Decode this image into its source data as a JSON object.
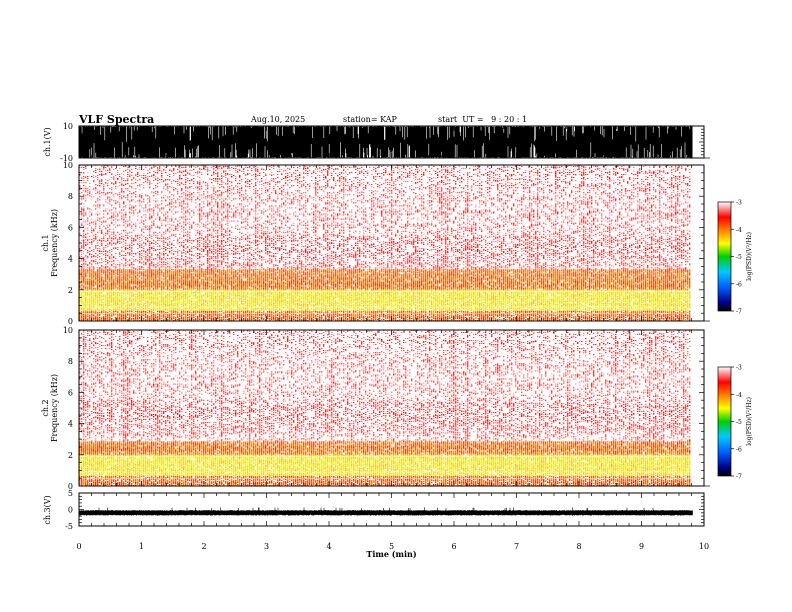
{
  "header": {
    "title": "VLF Spectra",
    "date": "Aug.10, 2025",
    "station": "station= KAP",
    "start": "start  UT =   9 : 20 : 1"
  },
  "chart_data": {
    "type": "heatmap",
    "title": "VLF Spectra",
    "xlabel": "Time  (min)",
    "xlim": [
      0,
      10
    ],
    "x_ticks": [
      "0",
      "1",
      "2",
      "3",
      "4",
      "5",
      "6",
      "7",
      "8",
      "9",
      "10"
    ],
    "data_end_min": 9.82,
    "panels": [
      {
        "name": "ch1-waveform",
        "type": "line",
        "ylabel": "ch.1(V)",
        "ylim": [
          -10,
          10
        ],
        "y_ticks": [
          "10",
          "-10"
        ],
        "amplitude_range": [
          -10,
          10
        ]
      },
      {
        "name": "ch1-spectrogram",
        "type": "heatmap",
        "ylabel": "ch.1 Frequency (kHz)",
        "ylim": [
          0,
          10
        ],
        "y_ticks": [
          "0",
          "2",
          "4",
          "6",
          "8",
          "10"
        ],
        "intense_bands_khz": [
          {
            "from": 0.6,
            "to": 2.0,
            "level": -4.4
          },
          {
            "from": 2.0,
            "to": 3.3,
            "level": -3.9
          }
        ],
        "background_level": -3.2,
        "colorbar": {
          "label": "log(PSD)(V²/Hz)",
          "range": [
            -7,
            -3
          ],
          "ticks": [
            "-3",
            "-4",
            "-5",
            "-6",
            "-7"
          ]
        }
      },
      {
        "name": "ch2-spectrogram",
        "type": "heatmap",
        "ylabel": "ch.2 Frequency (kHz)",
        "ylim": [
          0,
          10
        ],
        "y_ticks": [
          "0",
          "2",
          "4",
          "6",
          "8",
          "10"
        ],
        "intense_bands_khz": [
          {
            "from": 0.6,
            "to": 2.0,
            "level": -4.4
          },
          {
            "from": 2.0,
            "to": 2.8,
            "level": -3.9
          }
        ],
        "background_level": -3.2,
        "colorbar": {
          "label": "log(PSD)(V²/Hz)",
          "range": [
            -7,
            -3
          ],
          "ticks": [
            "-3",
            "-4",
            "-5",
            "-6",
            "-7"
          ]
        }
      },
      {
        "name": "ch3-waveform",
        "type": "line",
        "ylabel": "ch.3(V)",
        "ylim": [
          -5,
          5
        ],
        "y_ticks": [
          "5",
          "0",
          "-5"
        ],
        "amplitude_range": [
          -1.6,
          -0.4
        ]
      }
    ]
  }
}
